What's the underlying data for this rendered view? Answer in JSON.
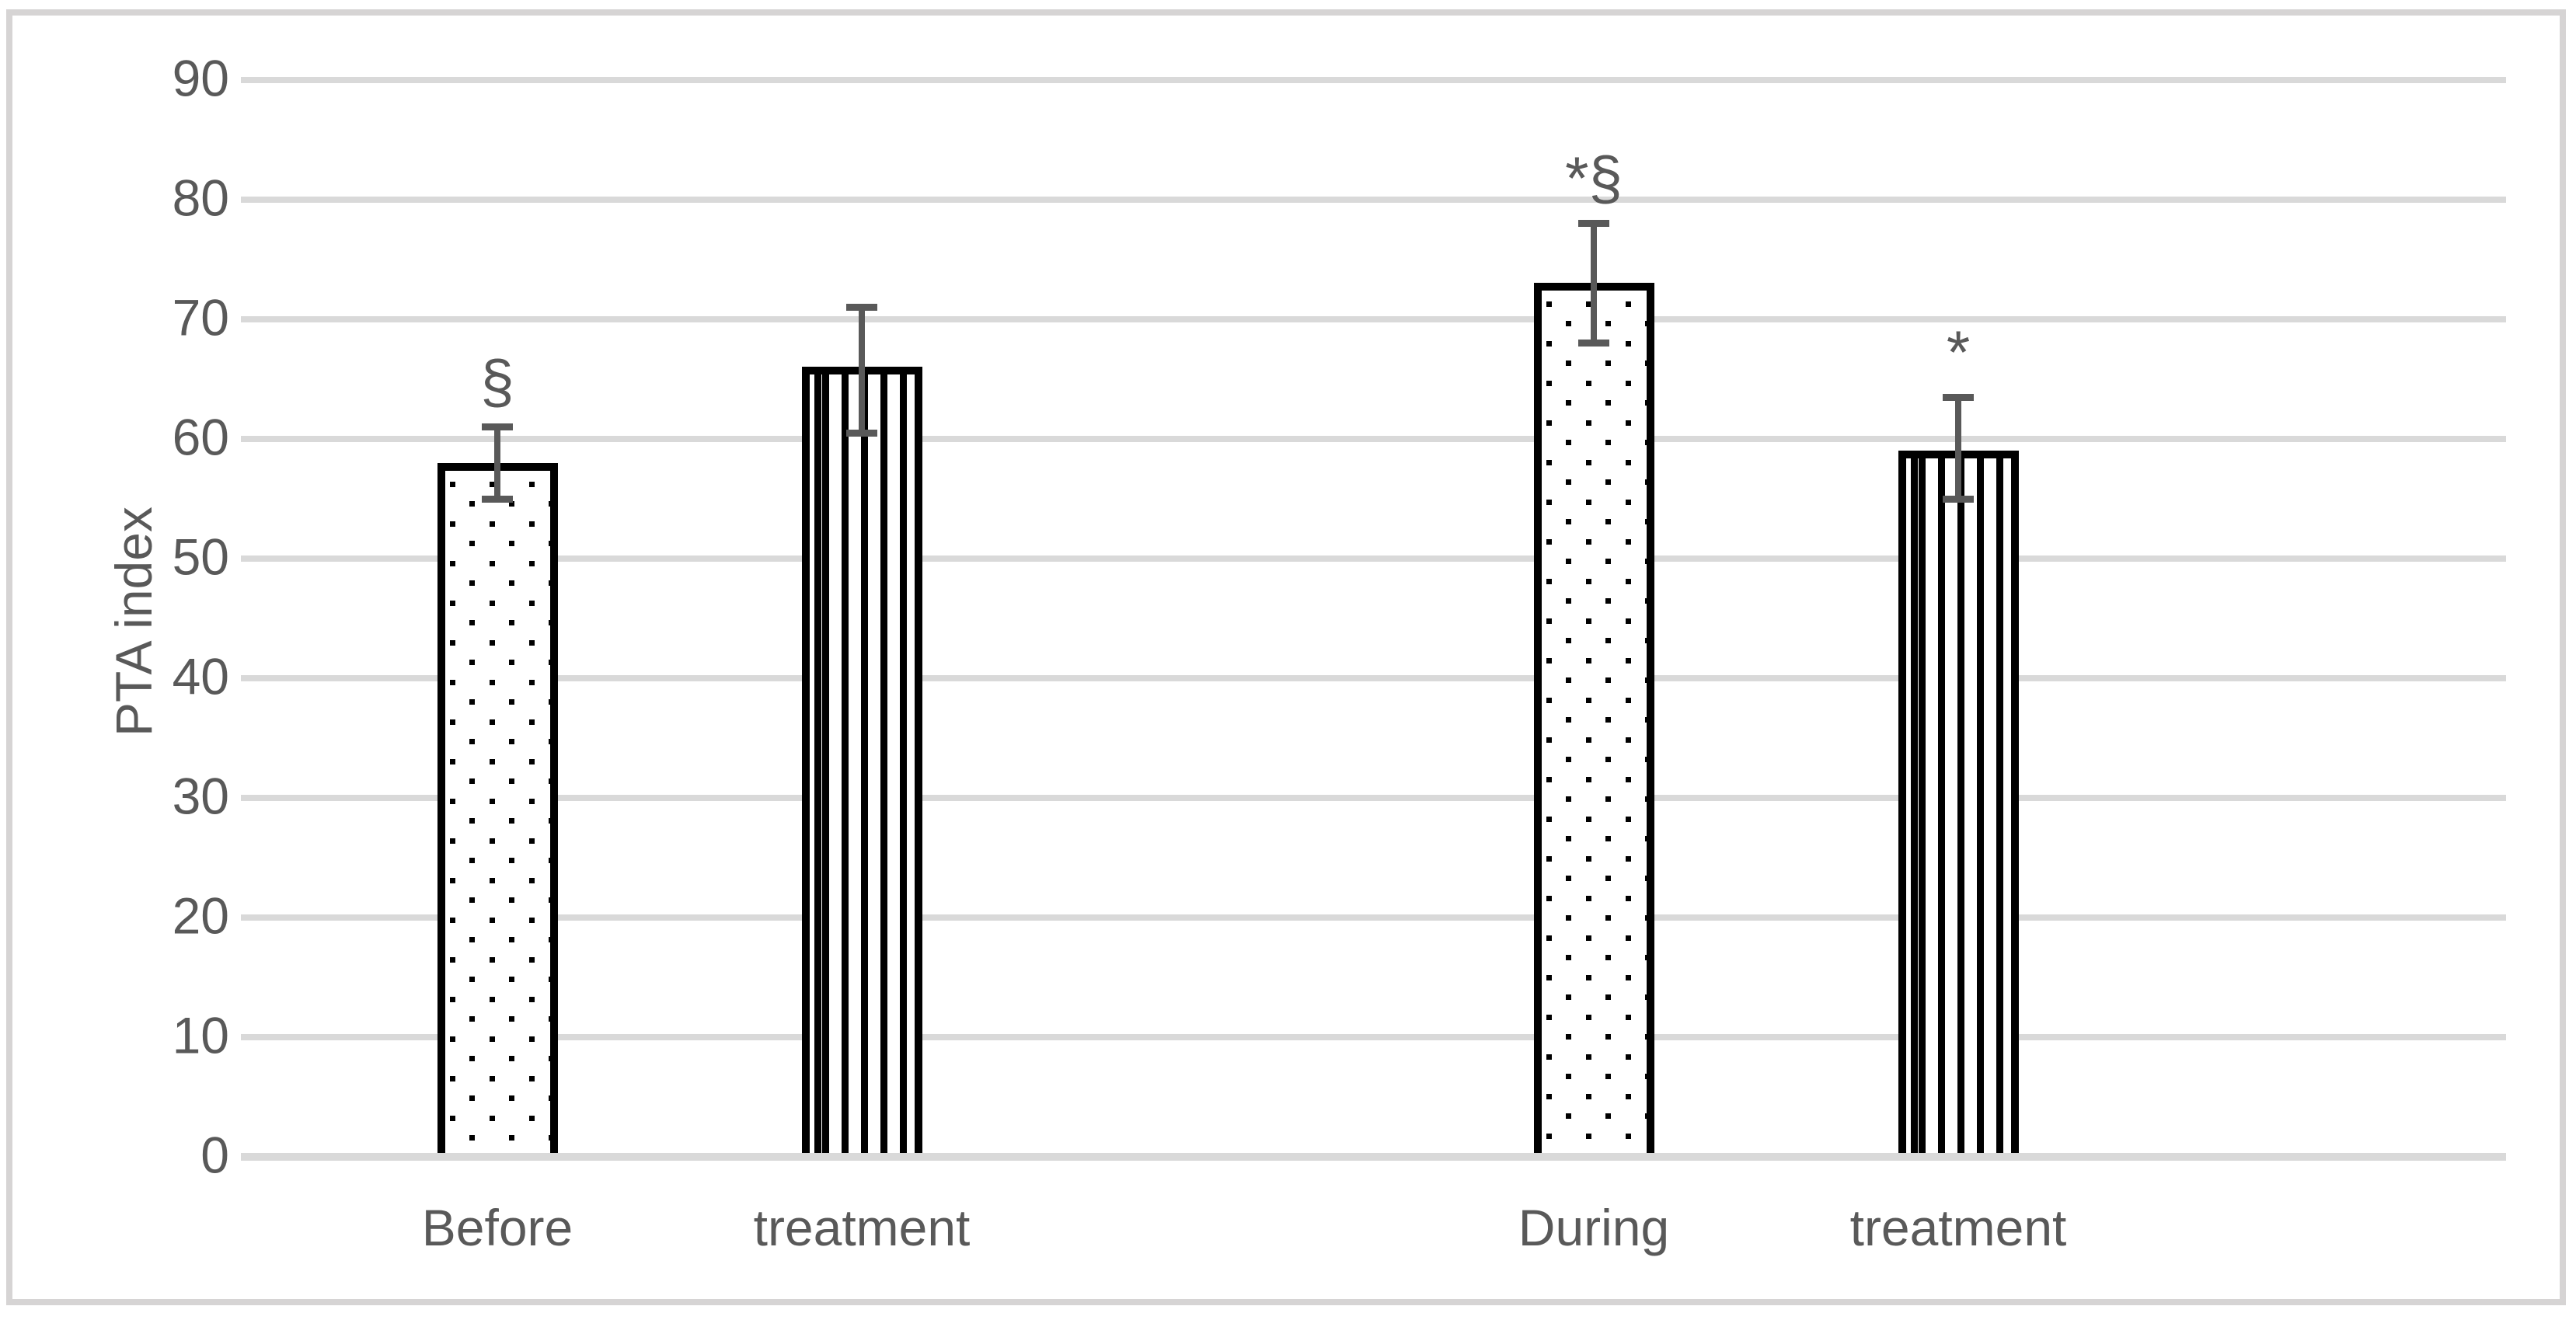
{
  "chart_data": {
    "type": "bar",
    "title": "",
    "xlabel": "",
    "ylabel": "PTA index",
    "ylim": [
      0,
      90
    ],
    "ytick_step": 10,
    "y_ticks": [
      0,
      10,
      20,
      30,
      40,
      50,
      60,
      70,
      80,
      90
    ],
    "grid": "horizontal",
    "legend": "none",
    "categories": [
      "Before",
      "treatment",
      "During",
      "treatment"
    ],
    "groups": [
      "Before treatment",
      "During treatment"
    ],
    "bars": [
      {
        "label": "Before",
        "group": "Before treatment",
        "value": 58,
        "error_high": 61,
        "error_low": 55,
        "pattern": "dots",
        "annotation": "§"
      },
      {
        "label": "treatment",
        "group": "Before treatment",
        "value": 66,
        "error_high": 71,
        "error_low": 60.5,
        "pattern": "vlines",
        "annotation": ""
      },
      {
        "label": "During",
        "group": "During treatment",
        "value": 73,
        "error_high": 78,
        "error_low": 68,
        "pattern": "dots",
        "annotation": "*§"
      },
      {
        "label": "treatment",
        "group": "During treatment",
        "value": 59,
        "error_high": 63.5,
        "error_low": 55,
        "pattern": "vlines",
        "annotation": "*"
      }
    ],
    "colors": {
      "bar_fill": "#ffffff",
      "bar_border": "#000000",
      "error_bar": "#595959",
      "gridline": "#d9d9d9",
      "text": "#595959",
      "figure_border": "#d6d4d4",
      "background": "#ffffff"
    }
  }
}
